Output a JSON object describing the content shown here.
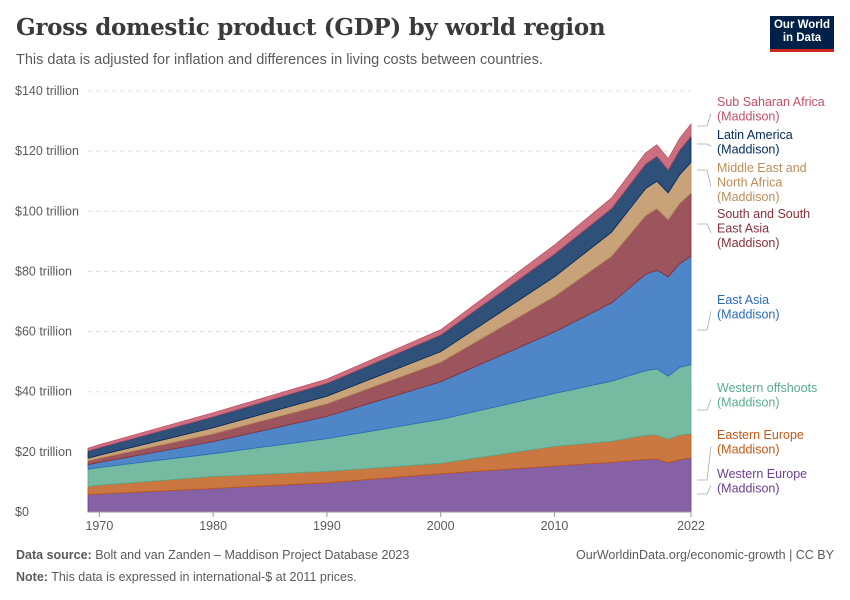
{
  "header": {
    "title": "Gross domestic product (GDP) by world region",
    "subtitle": "This data is adjusted for inflation and differences in living costs between countries.",
    "logo_line1": "Our World",
    "logo_line2": "in Data"
  },
  "footer": {
    "source_label": "Data source:",
    "source_text": "Bolt and van Zanden – Maddison Project Database 2023",
    "note_label": "Note:",
    "note_text": "This data is expressed in international-$ at 2011 prices.",
    "right_text": "OurWorldinData.org/economic-growth | CC BY"
  },
  "chart_data": {
    "type": "area",
    "stacked": true,
    "grid": "horizontal dashed",
    "legend_placement": "right",
    "xlim": [
      1969,
      2022
    ],
    "ylim": [
      0,
      140
    ],
    "x_ticks": [
      1970,
      1980,
      1990,
      2000,
      2010,
      2022
    ],
    "y_ticks": [
      0,
      20,
      40,
      60,
      80,
      100,
      120,
      140
    ],
    "y_tick_labels": [
      "$0",
      "$20 trillion",
      "$40 trillion",
      "$60 trillion",
      "$80 trillion",
      "$100 trillion",
      "$120 trillion",
      "$140 trillion"
    ],
    "x": [
      1969,
      1970,
      1980,
      1990,
      2000,
      2010,
      2015,
      2018,
      2019,
      2020,
      2021,
      2022
    ],
    "series": [
      {
        "name": "Western Europe (Maddison)",
        "color": "#6d3e91",
        "values": [
          5.8,
          6.0,
          7.8,
          9.7,
          12.7,
          15.3,
          16.5,
          17.5,
          17.6,
          16.4,
          17.4,
          18.0
        ]
      },
      {
        "name": "Eastern Europe (Maddison)",
        "color": "#c05917",
        "values": [
          2.7,
          2.9,
          4.0,
          3.8,
          3.5,
          6.5,
          7.0,
          8.0,
          8.0,
          7.8,
          8.2,
          8.0
        ]
      },
      {
        "name": "Western offshoots (Maddison)",
        "color": "#58ac8c",
        "values": [
          5.7,
          5.9,
          7.6,
          10.9,
          14.6,
          17.6,
          20.0,
          21.5,
          22.0,
          21.0,
          22.5,
          23.0
        ]
      },
      {
        "name": "East Asia (Maddison)",
        "color": "#286bbb",
        "values": [
          1.5,
          1.7,
          4.0,
          7.4,
          12.5,
          20.5,
          26.0,
          32.0,
          32.8,
          33.0,
          34.5,
          36.0
        ]
      },
      {
        "name": "South and South East Asia (Maddison)",
        "color": "#883039",
        "values": [
          1.3,
          1.4,
          2.6,
          4.2,
          6.5,
          11.8,
          15.5,
          19.5,
          20.5,
          19.0,
          20.0,
          21.0
        ]
      },
      {
        "name": "Middle East and North Africa (Maddison)",
        "color": "#bc8e5a",
        "values": [
          0.9,
          1.0,
          2.0,
          2.5,
          3.5,
          6.5,
          8.0,
          9.0,
          9.1,
          8.9,
          9.5,
          10.3
        ]
      },
      {
        "name": "Latin America (Maddison)",
        "color": "#00295b",
        "values": [
          2.4,
          2.5,
          3.7,
          4.3,
          5.6,
          7.6,
          7.9,
          8.2,
          8.3,
          7.7,
          8.2,
          8.6
        ]
      },
      {
        "name": "Sub Saharan Africa (Maddison)",
        "color": "#c15065",
        "values": [
          0.9,
          1.0,
          1.3,
          1.4,
          1.7,
          3.0,
          3.5,
          3.7,
          3.8,
          3.7,
          3.9,
          4.1
        ]
      }
    ],
    "legend": [
      {
        "lines": [
          "Sub Saharan Africa",
          "(Maddison)"
        ],
        "color": "#c15065"
      },
      {
        "lines": [
          "Latin America",
          "(Maddison)"
        ],
        "color": "#00295b"
      },
      {
        "lines": [
          "Middle East and",
          "North Africa",
          "(Maddison)"
        ],
        "color": "#bc8e5a"
      },
      {
        "lines": [
          "South and South",
          "East Asia",
          "(Maddison)"
        ],
        "color": "#883039"
      },
      {
        "lines": [
          "East Asia",
          "(Maddison)"
        ],
        "color": "#286bbb"
      },
      {
        "lines": [
          "Western offshoots",
          "(Maddison)"
        ],
        "color": "#58ac8c"
      },
      {
        "lines": [
          "Eastern Europe",
          "(Maddison)"
        ],
        "color": "#c05917"
      },
      {
        "lines": [
          "Western Europe",
          "(Maddison)"
        ],
        "color": "#6d3e91"
      }
    ]
  }
}
